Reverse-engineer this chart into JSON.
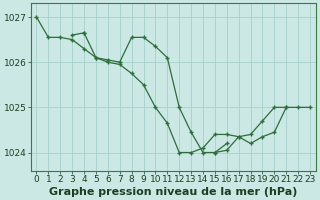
{
  "background_color": "#cce8e4",
  "plot_bg_color": "#cce8e4",
  "grid_color": "#aad4d0",
  "line_color": "#2d6e3a",
  "xlabel": "Graphe pression niveau de la mer (hPa)",
  "xlabel_fontsize": 8,
  "tick_fontsize": 6.5,
  "xlim": [
    -0.5,
    23.5
  ],
  "ylim": [
    1023.6,
    1027.3
  ],
  "yticks": [
    1024,
    1025,
    1026,
    1027
  ],
  "xticks": [
    0,
    1,
    2,
    3,
    4,
    5,
    6,
    7,
    8,
    9,
    10,
    11,
    12,
    13,
    14,
    15,
    16,
    17,
    18,
    19,
    20,
    21,
    22,
    23
  ],
  "series": [
    {
      "x": [
        0,
        1,
        2,
        3,
        4,
        5,
        6,
        7,
        8,
        9,
        10,
        11,
        12,
        13,
        14,
        15,
        16,
        17,
        18,
        19,
        20,
        21
      ],
      "y": [
        1027.0,
        1026.55,
        1026.55,
        1026.5,
        1026.3,
        1026.1,
        1026.0,
        1025.95,
        1025.75,
        1025.5,
        1025.0,
        1024.65,
        1024.0,
        1024.0,
        1024.1,
        1024.4,
        1024.4,
        1024.35,
        1024.4,
        1024.7,
        1025.0,
        1025.0
      ]
    },
    {
      "x": [
        3,
        4
      ],
      "y": [
        1026.6,
        1026.65
      ]
    },
    {
      "x": [
        4,
        5,
        6,
        7,
        8,
        9,
        10,
        11,
        12,
        13,
        14,
        15,
        16
      ],
      "y": [
        1026.65,
        1026.1,
        1026.05,
        1026.0,
        1026.55,
        1026.55,
        1026.35,
        1026.1,
        1025.0,
        1024.45,
        1024.0,
        1024.0,
        1024.2
      ]
    },
    {
      "x": [
        15,
        16,
        17,
        18,
        19,
        20,
        21,
        22,
        23
      ],
      "y": [
        1024.0,
        1024.05,
        1024.35,
        1024.2,
        1024.35,
        1024.45,
        1025.0,
        1025.0,
        1025.0
      ]
    }
  ]
}
